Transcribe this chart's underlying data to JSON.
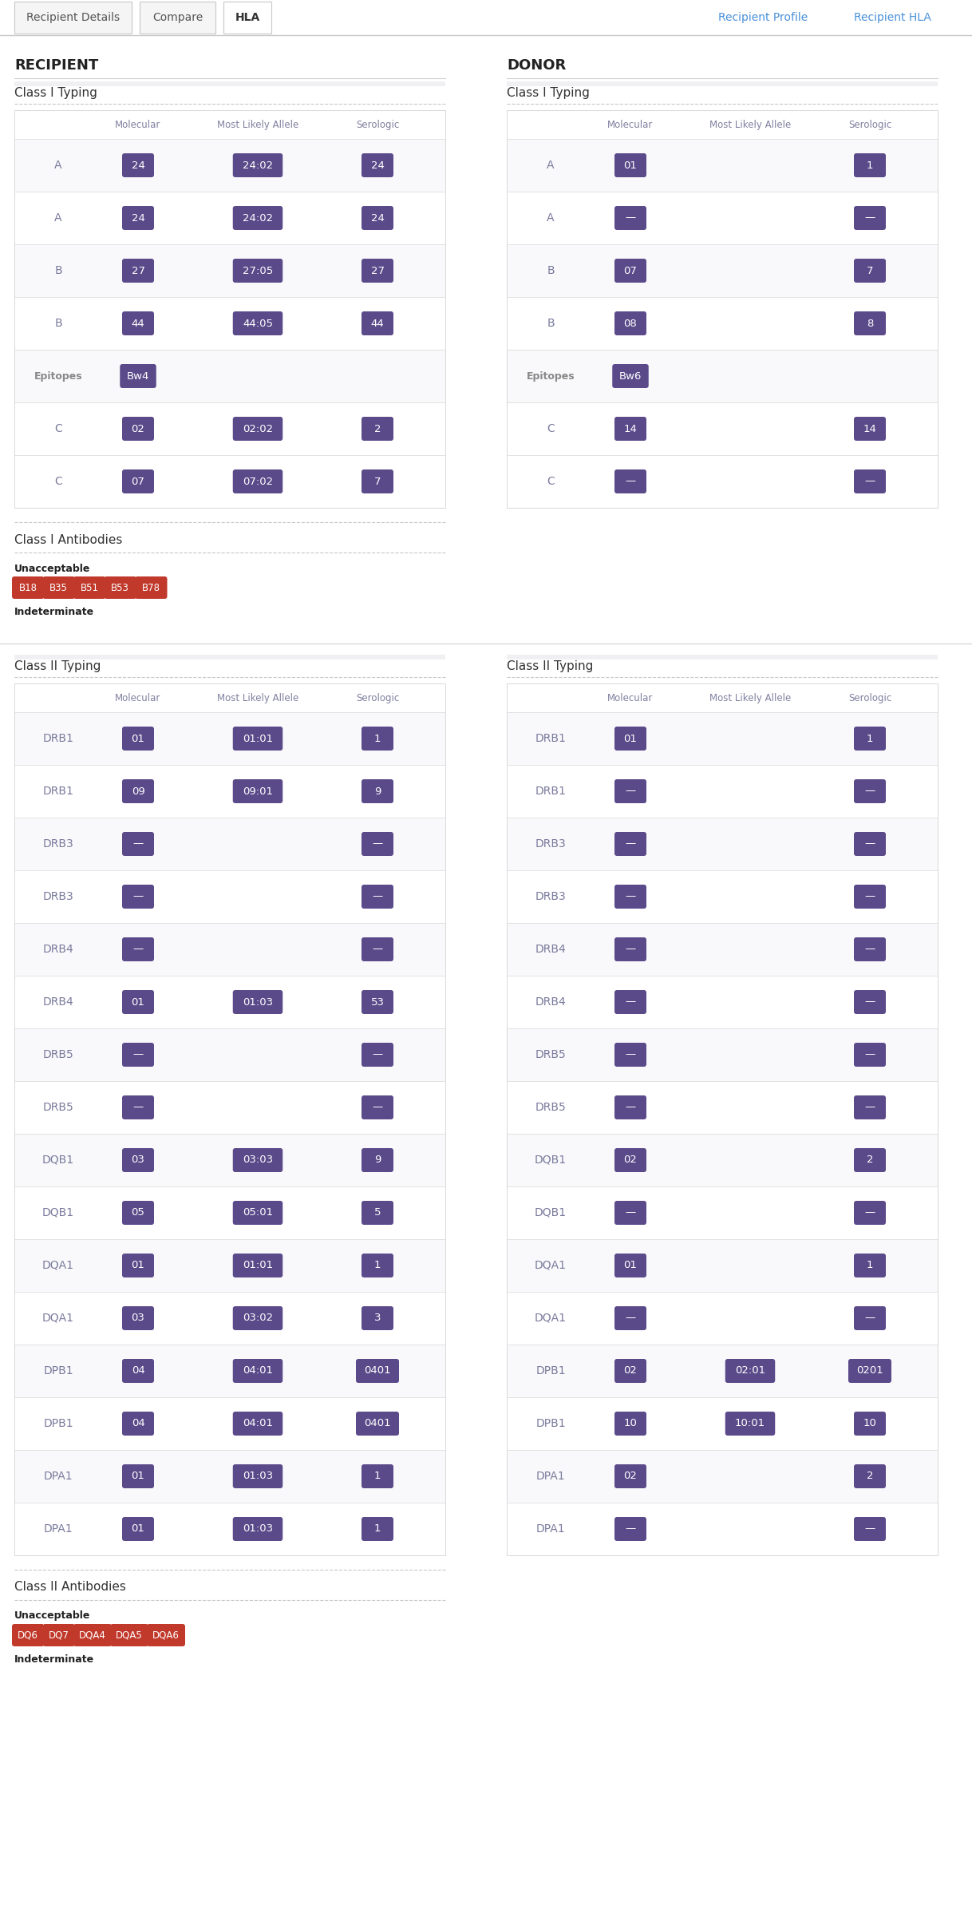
{
  "bg_color": "#ffffff",
  "tab_bg": "#f5f5f5",
  "tab_active_bg": "#ffffff",
  "tab_border": "#c8c8c8",
  "purple_bg": "#5b4a8a",
  "purple_text": "#ffffff",
  "header_color": "#8080a0",
  "row_label_color": "#7a7a9d",
  "epitope_label_color": "#888888",
  "section_title_color": "#333333",
  "main_title_color": "#222222",
  "link_color": "#4a90d9",
  "antibody_red": "#c0392b",
  "antibody_red_text": "#ffffff",
  "tab_text_color": "#555555",
  "tab_active_text": "#333333",
  "dashed_line_color": "#c8c8c8",
  "table_header_bg": "#f0f0f2",
  "table_border": "#d8d8d8",
  "separator_color": "#d0d0d0",
  "col_headers": [
    "Molecular",
    "Most Likely Allele",
    "Serologic"
  ],
  "recipient_title": "RECIPIENT",
  "donor_title": "DONOR",
  "class1_typing_title": "Class I Typing",
  "class2_typing_title": "Class II Typing",
  "class1_antibodies_title": "Class I Antibodies",
  "class2_antibodies_title": "Class II Antibodies",
  "unacceptable_label": "Unacceptable",
  "indeterminate_label": "Indeterminate",
  "tabs": [
    "Recipient Details",
    "Compare",
    "HLA"
  ],
  "active_tab": "HLA",
  "right_links": [
    "Recipient Profile",
    "Recipient HLA"
  ],
  "recipient_class1": [
    {
      "label": "A",
      "molecular": "24",
      "allele": "24:02",
      "serologic": "24"
    },
    {
      "label": "A",
      "molecular": "24",
      "allele": "24:02",
      "serologic": "24"
    },
    {
      "label": "B",
      "molecular": "27",
      "allele": "27:05",
      "serologic": "27"
    },
    {
      "label": "B",
      "molecular": "44",
      "allele": "44:05",
      "serologic": "44"
    },
    {
      "label": "Epitopes",
      "molecular": "Bw4",
      "allele": "",
      "serologic": ""
    },
    {
      "label": "C",
      "molecular": "02",
      "allele": "02:02",
      "serologic": "2"
    },
    {
      "label": "C",
      "molecular": "07",
      "allele": "07:02",
      "serologic": "7"
    }
  ],
  "donor_class1": [
    {
      "label": "A",
      "molecular": "01",
      "allele": "",
      "serologic": "1"
    },
    {
      "label": "A",
      "molecular": "—",
      "allele": "",
      "serologic": "—"
    },
    {
      "label": "B",
      "molecular": "07",
      "allele": "",
      "serologic": "7"
    },
    {
      "label": "B",
      "molecular": "08",
      "allele": "",
      "serologic": "8"
    },
    {
      "label": "Epitopes",
      "molecular": "Bw6",
      "allele": "",
      "serologic": ""
    },
    {
      "label": "C",
      "molecular": "14",
      "allele": "",
      "serologic": "14"
    },
    {
      "label": "C",
      "molecular": "—",
      "allele": "",
      "serologic": "—"
    }
  ],
  "recipient_antibodies_class1": [
    "B18",
    "B35",
    "B51",
    "B53",
    "B78"
  ],
  "recipient_class2": [
    {
      "label": "DRB1",
      "molecular": "01",
      "allele": "01:01",
      "serologic": "1"
    },
    {
      "label": "DRB1",
      "molecular": "09",
      "allele": "09:01",
      "serologic": "9"
    },
    {
      "label": "DRB3",
      "molecular": "—",
      "allele": "",
      "serologic": "—"
    },
    {
      "label": "DRB3",
      "molecular": "—",
      "allele": "",
      "serologic": "—"
    },
    {
      "label": "DRB4",
      "molecular": "—",
      "allele": "",
      "serologic": "—"
    },
    {
      "label": "DRB4",
      "molecular": "01",
      "allele": "01:03",
      "serologic": "53"
    },
    {
      "label": "DRB5",
      "molecular": "—",
      "allele": "",
      "serologic": "—"
    },
    {
      "label": "DRB5",
      "molecular": "—",
      "allele": "",
      "serologic": "—"
    },
    {
      "label": "DQB1",
      "molecular": "03",
      "allele": "03:03",
      "serologic": "9"
    },
    {
      "label": "DQB1",
      "molecular": "05",
      "allele": "05:01",
      "serologic": "5"
    },
    {
      "label": "DQA1",
      "molecular": "01",
      "allele": "01:01",
      "serologic": "1"
    },
    {
      "label": "DQA1",
      "molecular": "03",
      "allele": "03:02",
      "serologic": "3"
    },
    {
      "label": "DPB1",
      "molecular": "04",
      "allele": "04:01",
      "serologic": "0401"
    },
    {
      "label": "DPB1",
      "molecular": "04",
      "allele": "04:01",
      "serologic": "0401"
    },
    {
      "label": "DPA1",
      "molecular": "01",
      "allele": "01:03",
      "serologic": "1"
    },
    {
      "label": "DPA1",
      "molecular": "01",
      "allele": "01:03",
      "serologic": "1"
    }
  ],
  "donor_class2": [
    {
      "label": "DRB1",
      "molecular": "01",
      "allele": "",
      "serologic": "1"
    },
    {
      "label": "DRB1",
      "molecular": "—",
      "allele": "",
      "serologic": "—"
    },
    {
      "label": "DRB3",
      "molecular": "—",
      "allele": "",
      "serologic": "—"
    },
    {
      "label": "DRB3",
      "molecular": "—",
      "allele": "",
      "serologic": "—"
    },
    {
      "label": "DRB4",
      "molecular": "—",
      "allele": "",
      "serologic": "—"
    },
    {
      "label": "DRB4",
      "molecular": "—",
      "allele": "",
      "serologic": "—"
    },
    {
      "label": "DRB5",
      "molecular": "—",
      "allele": "",
      "serologic": "—"
    },
    {
      "label": "DRB5",
      "molecular": "—",
      "allele": "",
      "serologic": "—"
    },
    {
      "label": "DQB1",
      "molecular": "02",
      "allele": "",
      "serologic": "2"
    },
    {
      "label": "DQB1",
      "molecular": "—",
      "allele": "",
      "serologic": "—"
    },
    {
      "label": "DQA1",
      "molecular": "01",
      "allele": "",
      "serologic": "1"
    },
    {
      "label": "DQA1",
      "molecular": "—",
      "allele": "",
      "serologic": "—"
    },
    {
      "label": "DPB1",
      "molecular": "02",
      "allele": "02:01",
      "serologic": "0201"
    },
    {
      "label": "DPB1",
      "molecular": "10",
      "allele": "10:01",
      "serologic": "10"
    },
    {
      "label": "DPA1",
      "molecular": "02",
      "allele": "",
      "serologic": "2"
    },
    {
      "label": "DPA1",
      "molecular": "—",
      "allele": "",
      "serologic": "—"
    }
  ],
  "recipient_antibodies_class2": [
    "DQ6",
    "DQ7",
    "DQA4",
    "DQA5",
    "DQA6"
  ]
}
